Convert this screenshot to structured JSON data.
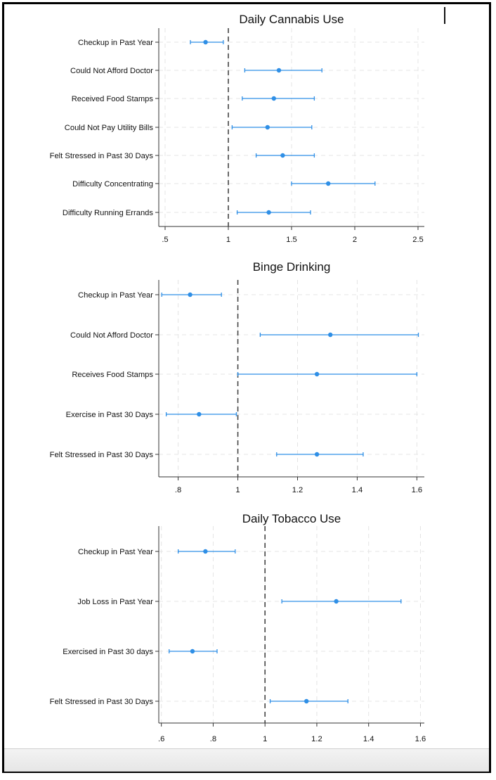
{
  "colors": {
    "series": "#2f8fe6",
    "reference_line": "#444444",
    "grid": "#e4e4e4",
    "axis": "#333333"
  },
  "chart_data": [
    {
      "type": "scatter",
      "title": "Daily Cannabis Use",
      "categories": [
        "Checkup in Past Year",
        "Could Not Afford Doctor",
        "Received Food Stamps",
        "Could Not Pay Utility Bills",
        "Felt Stressed in Past 30 Days",
        "Difficulty Concentrating",
        "Difficulty Running Errands"
      ],
      "values": [
        0.82,
        1.4,
        1.36,
        1.31,
        1.43,
        1.79,
        1.32
      ],
      "ci_low": [
        0.7,
        1.13,
        1.11,
        1.03,
        1.22,
        1.5,
        1.07
      ],
      "ci_high": [
        0.96,
        1.74,
        1.68,
        1.66,
        1.68,
        2.16,
        1.65
      ],
      "reference_line": 1,
      "xlim": [
        0.45,
        2.55
      ],
      "xticks": [
        0.5,
        1,
        1.5,
        2,
        2.5
      ],
      "xtick_labels": [
        ".5",
        "1",
        "1.5",
        "2",
        "2.5"
      ],
      "grid": true
    },
    {
      "type": "scatter",
      "title": "Binge Drinking",
      "categories": [
        "Checkup in Past Year",
        "Could Not Afford Doctor",
        "Receives Food Stamps",
        "Exercise in Past 30 Days",
        "Felt Stressed in Past 30 Days"
      ],
      "values": [
        0.84,
        1.31,
        1.265,
        0.87,
        1.265
      ],
      "ci_low": [
        0.745,
        1.075,
        1.0,
        0.76,
        1.13
      ],
      "ci_high": [
        0.945,
        1.605,
        1.6,
        0.995,
        1.42
      ],
      "reference_line": 1,
      "xlim": [
        0.735,
        1.625
      ],
      "xticks": [
        0.8,
        1,
        1.2,
        1.4,
        1.6
      ],
      "xtick_labels": [
        ".8",
        "1",
        "1.2",
        "1.4",
        "1.6"
      ],
      "grid": true
    },
    {
      "type": "scatter",
      "title": "Daily Tobacco Use",
      "categories": [
        "Checkup in Past Year",
        "Job Loss in Past Year",
        "Exercised in Past 30 days",
        "Felt Stressed in Past 30 Days"
      ],
      "values": [
        0.77,
        1.275,
        0.72,
        1.16
      ],
      "ci_low": [
        0.665,
        1.065,
        0.63,
        1.02
      ],
      "ci_high": [
        0.885,
        1.525,
        0.815,
        1.32
      ],
      "reference_line": 1,
      "xlim": [
        0.59,
        1.615
      ],
      "xticks": [
        0.6,
        0.8,
        1,
        1.2,
        1.4,
        1.6
      ],
      "xtick_labels": [
        ".6",
        ".8",
        "1",
        "1.2",
        "1.4",
        "1.6"
      ],
      "grid": true
    }
  ]
}
